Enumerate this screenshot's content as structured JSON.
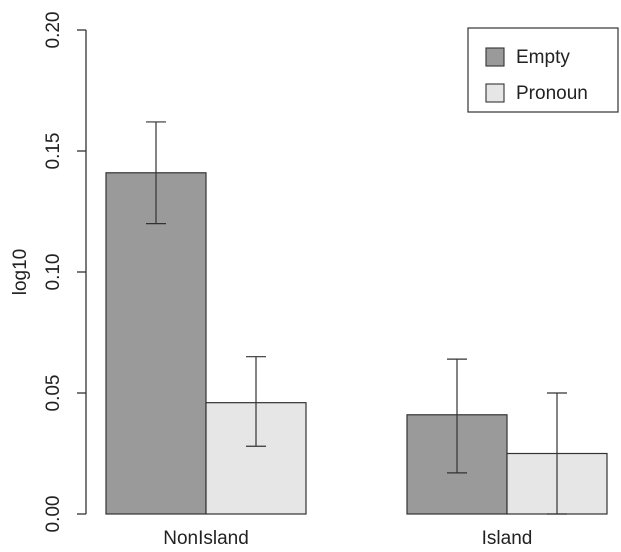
{
  "chart_data": {
    "type": "bar",
    "categories": [
      "NonIsland",
      "Island"
    ],
    "series": [
      {
        "name": "Empty",
        "color": "#9a9a9a",
        "values": [
          0.141,
          0.041
        ],
        "error_low": [
          0.12,
          0.017
        ],
        "error_high": [
          0.162,
          0.064
        ]
      },
      {
        "name": "Pronoun",
        "color": "#e6e6e6",
        "values": [
          0.046,
          0.025
        ],
        "error_low": [
          0.028,
          0.0
        ],
        "error_high": [
          0.065,
          0.05
        ]
      }
    ],
    "ylabel": "log10",
    "yticks": [
      "0.00",
      "0.05",
      "0.10",
      "0.15",
      "0.20"
    ],
    "ylim": [
      0,
      0.2
    ],
    "grid": false,
    "legend_position": "top-right"
  }
}
